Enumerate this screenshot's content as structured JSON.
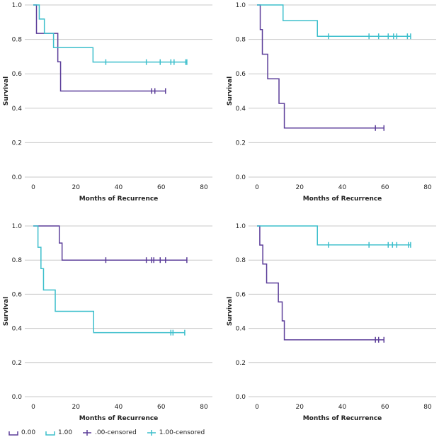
{
  "colors": {
    "c000": "#5b3d99",
    "c100": "#3dbfcc",
    "grid": "#c8c8c8",
    "axis": "#666666"
  },
  "legend": [
    {
      "label": "0.00",
      "key": "c000",
      "style": "step"
    },
    {
      "label": "1.00",
      "key": "c100",
      "style": "step"
    },
    {
      "label": ".00-censored",
      "key": "c000",
      "style": "censor"
    },
    {
      "label": "1.00-censored",
      "key": "c100",
      "style": "censor"
    }
  ],
  "chart_data": [
    {
      "type": "line",
      "title": "",
      "xlabel": "Months of Recurrence",
      "ylabel": "Survival",
      "xlim": [
        0,
        80
      ],
      "ylim": [
        0.0,
        1.0
      ],
      "xticks": [
        0,
        20,
        40,
        60,
        80
      ],
      "yticks": [
        "0.0",
        "0.2",
        "0.4",
        "0.6",
        "0.8",
        "1.0"
      ],
      "series": [
        {
          "name": "0.00",
          "color": "c000",
          "steps": [
            [
              0,
              1.0
            ],
            [
              1.5,
              0.835
            ],
            [
              11.5,
              0.67
            ],
            [
              12.8,
              0.5
            ],
            [
              62,
              0.5
            ]
          ],
          "censored": [
            55.5,
            57,
            62
          ]
        },
        {
          "name": "1.00",
          "color": "c100",
          "steps": [
            [
              0,
              1.0
            ],
            [
              2.8,
              0.918
            ],
            [
              5.2,
              0.835
            ],
            [
              9.5,
              0.752
            ],
            [
              28,
              0.668
            ],
            [
              72,
              0.668
            ]
          ],
          "censored": [
            34,
            53,
            59.5,
            64.5,
            66,
            71.5,
            72
          ]
        }
      ]
    },
    {
      "type": "line",
      "title": "",
      "xlabel": "Months of Recurrence",
      "ylabel": "Survival",
      "xlim": [
        0,
        80
      ],
      "ylim": [
        0.0,
        1.0
      ],
      "xticks": [
        0,
        20,
        40,
        60,
        80
      ],
      "yticks": [
        "0.0",
        "0.2",
        "0.4",
        "0.6",
        "0.8",
        "1.0"
      ],
      "series": [
        {
          "name": "0.00",
          "color": "c000",
          "steps": [
            [
              0,
              1.0
            ],
            [
              1.5,
              0.857
            ],
            [
              2.5,
              0.714
            ],
            [
              5,
              0.571
            ],
            [
              10.3,
              0.428
            ],
            [
              12.8,
              0.285
            ],
            [
              59.5,
              0.285
            ]
          ],
          "censored": [
            55.5,
            59.5
          ]
        },
        {
          "name": "1.00",
          "color": "c100",
          "steps": [
            [
              0,
              1.0
            ],
            [
              12.2,
              0.909
            ],
            [
              28.3,
              0.818
            ],
            [
              72,
              0.818
            ]
          ],
          "censored": [
            33.5,
            52.5,
            57,
            61.5,
            64,
            65.5,
            70.5,
            72
          ]
        }
      ]
    },
    {
      "type": "line",
      "title": "",
      "xlabel": "Months of Recurrence",
      "ylabel": "Survival",
      "xlim": [
        0,
        80
      ],
      "ylim": [
        0.0,
        1.0
      ],
      "xticks": [
        0,
        20,
        40,
        60,
        80
      ],
      "yticks": [
        "0.0",
        "0.2",
        "0.4",
        "0.6",
        "0.8",
        "1.0"
      ],
      "series": [
        {
          "name": "0.00",
          "color": "c000",
          "steps": [
            [
              0,
              1.0
            ],
            [
              12.2,
              0.9
            ],
            [
              13.5,
              0.8
            ],
            [
              72,
              0.8
            ]
          ],
          "censored": [
            34,
            53,
            55.5,
            56.5,
            59.5,
            62,
            72
          ]
        },
        {
          "name": "1.00",
          "color": "c100",
          "steps": [
            [
              0,
              1.0
            ],
            [
              2.2,
              0.875
            ],
            [
              3.6,
              0.75
            ],
            [
              4.8,
              0.625
            ],
            [
              10.3,
              0.5
            ],
            [
              28.3,
              0.375
            ],
            [
              71,
              0.375
            ]
          ],
          "censored": [
            64.5,
            65.5,
            71
          ]
        }
      ]
    },
    {
      "type": "line",
      "title": "",
      "xlabel": "Months of Recurrence",
      "ylabel": "Survival",
      "xlim": [
        0,
        80
      ],
      "ylim": [
        0.0,
        1.0
      ],
      "xticks": [
        0,
        20,
        40,
        60,
        80
      ],
      "yticks": [
        "0.0",
        "0.2",
        "0.4",
        "0.6",
        "0.8",
        "1.0"
      ],
      "series": [
        {
          "name": "0.00",
          "color": "c000",
          "steps": [
            [
              0,
              1.0
            ],
            [
              1.3,
              0.888
            ],
            [
              2.7,
              0.777
            ],
            [
              4.5,
              0.666
            ],
            [
              10,
              0.555
            ],
            [
              11.8,
              0.444
            ],
            [
              12.8,
              0.333
            ],
            [
              59.5,
              0.333
            ]
          ],
          "censored": [
            55.5,
            57,
            59.5
          ]
        },
        {
          "name": "1.00",
          "color": "c100",
          "steps": [
            [
              0,
              1.0
            ],
            [
              28.3,
              0.889
            ],
            [
              72,
              0.889
            ]
          ],
          "censored": [
            33.5,
            52.5,
            61.5,
            63.5,
            65.5,
            71,
            72
          ]
        }
      ]
    }
  ]
}
